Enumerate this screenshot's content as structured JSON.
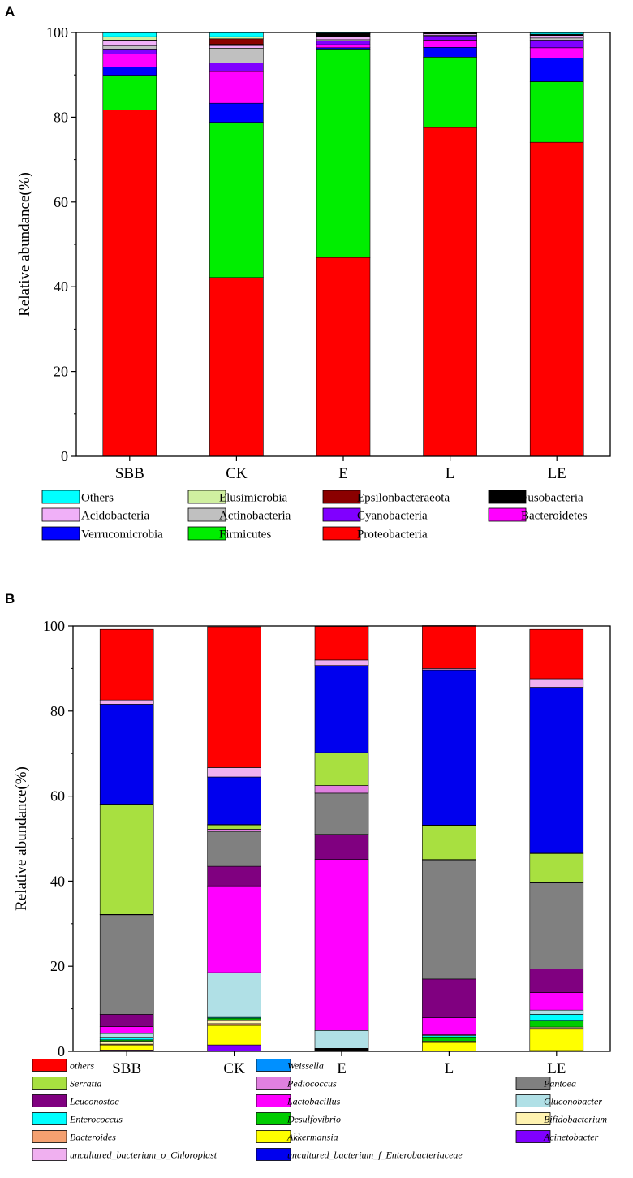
{
  "chart_data": [
    {
      "type": "bar",
      "stacked": true,
      "panel_label": "A",
      "title": "",
      "xlabel": "",
      "ylabel": "Relative abundance(%)",
      "ylim": [
        0,
        100
      ],
      "yticks": [
        0,
        20,
        40,
        60,
        80,
        100
      ],
      "categories": [
        "SBB",
        "CK",
        "E",
        "L",
        "LE"
      ],
      "legend_position": "bottom",
      "legend_italic": false,
      "legend_order": [
        "Others",
        "Elusimicrobia",
        "Epsilonbacteraeota",
        "Fusobacteria",
        "Acidobacteria",
        "Actinobacteria",
        "Cyanobacteria",
        "Bacteroidetes",
        "Verrucomicrobia",
        "Firmicutes",
        "Proteobacteria"
      ],
      "series": [
        {
          "name": "Proteobacteria",
          "color": "#ff0000",
          "values": [
            81.7,
            42.2,
            46.9,
            77.6,
            74.1
          ]
        },
        {
          "name": "Firmicutes",
          "color": "#00ee00",
          "values": [
            8.2,
            36.6,
            49.2,
            16.6,
            14.3
          ]
        },
        {
          "name": "Verrucomicrobia",
          "color": "#0000ff",
          "values": [
            2.0,
            4.5,
            0.3,
            2.3,
            5.6
          ]
        },
        {
          "name": "Bacteroidetes",
          "color": "#ff00ff",
          "values": [
            3.0,
            7.5,
            0.7,
            1.7,
            2.4
          ]
        },
        {
          "name": "Cyanobacteria",
          "color": "#8000ff",
          "values": [
            1.2,
            2.0,
            0.9,
            1.0,
            1.8
          ]
        },
        {
          "name": "Actinobacteria",
          "color": "#c0c0c0",
          "values": [
            0.7,
            3.5,
            0.3,
            0.2,
            0.5
          ]
        },
        {
          "name": "Acidobacteria",
          "color": "#f0b0f8",
          "values": [
            1.2,
            0.6,
            0.8,
            0.3,
            0.6
          ]
        },
        {
          "name": "Fusobacteria",
          "color": "#000000",
          "values": [
            0.1,
            0.3,
            0.5,
            0.1,
            0.1
          ]
        },
        {
          "name": "Epsilonbacteraeota",
          "color": "#8b0000",
          "values": [
            0.1,
            1.3,
            0.1,
            0.1,
            0.1
          ]
        },
        {
          "name": "Elusimicrobia",
          "color": "#d0f0a0",
          "values": [
            0.8,
            0.5,
            0.1,
            0.1,
            0.1
          ]
        },
        {
          "name": "Others",
          "color": "#00ffff",
          "values": [
            1.0,
            1.0,
            0.2,
            0.0,
            0.4
          ]
        }
      ]
    },
    {
      "type": "bar",
      "stacked": true,
      "panel_label": "B",
      "title": "",
      "xlabel": "",
      "ylabel": "Relative abundance(%)",
      "ylim": [
        0,
        100
      ],
      "yticks": [
        0,
        20,
        40,
        60,
        80,
        100
      ],
      "categories": [
        "SBB",
        "CK",
        "E",
        "L",
        "LE"
      ],
      "legend_position": "bottom",
      "legend_italic": true,
      "legend_order": [
        "others",
        "Weissella",
        "Pantoea",
        "Serratia",
        "Pediococcus",
        "Leuconostoc",
        "Lactobacillus",
        "Gluconobacter",
        "Enterococcus",
        "Desulfovibrio",
        "Bifidobacterium",
        "Bacteroides",
        "Akkermansia",
        "Acinetobacter",
        "uncultured_bacterium_o_Chloroplast",
        "uncultured_bacterium_f_Enterobacteriaceae"
      ],
      "series": [
        {
          "name": "Acinetobacter",
          "color": "#8000ff",
          "values": [
            0.3,
            1.5,
            0.2,
            0.1,
            0.2
          ]
        },
        {
          "name": "Akkermansia",
          "color": "#ffff00",
          "values": [
            1.2,
            4.6,
            0.1,
            2.0,
            5.0
          ]
        },
        {
          "name": "Bacteroides",
          "color": "#f4a070",
          "values": [
            0.2,
            0.4,
            0.1,
            0.1,
            0.2
          ]
        },
        {
          "name": "Bifidobacterium",
          "color": "#fff3b0",
          "values": [
            0.7,
            0.9,
            0.1,
            0.2,
            0.3
          ]
        },
        {
          "name": "Desulfovibrio",
          "color": "#00cc00",
          "values": [
            0.3,
            0.4,
            0.1,
            1.0,
            1.6
          ]
        },
        {
          "name": "Enterococcus",
          "color": "#00ffff",
          "values": [
            0.6,
            0.2,
            0.1,
            0.3,
            1.4
          ]
        },
        {
          "name": "Gluconobacter",
          "color": "#b0e0e6",
          "values": [
            0.9,
            10.5,
            4.2,
            0.2,
            1.0
          ]
        },
        {
          "name": "Lactobacillus",
          "color": "#ff00ff",
          "values": [
            1.6,
            20.4,
            40.2,
            4.0,
            4.1
          ]
        },
        {
          "name": "Leuconostoc",
          "color": "#800080",
          "values": [
            2.9,
            4.6,
            5.9,
            9.1,
            5.6
          ]
        },
        {
          "name": "Pantoea",
          "color": "#808080",
          "values": [
            23.4,
            8.2,
            9.7,
            28.0,
            20.2
          ]
        },
        {
          "name": "Pediococcus",
          "color": "#e080e0",
          "values": [
            0.1,
            0.5,
            1.8,
            0.1,
            0.1
          ]
        },
        {
          "name": "Serratia",
          "color": "#a8e040",
          "values": [
            25.8,
            1.0,
            7.6,
            8.0,
            6.8
          ]
        },
        {
          "name": "Weissella",
          "color": "#0090ff",
          "values": [
            0.1,
            0.1,
            0.1,
            0.1,
            0.1
          ]
        },
        {
          "name": "uncultured_bacterium_f_Enterobacteriaceae",
          "color": "#0000ee",
          "values": [
            23.5,
            11.2,
            20.5,
            36.5,
            39.0
          ]
        },
        {
          "name": "uncultured_bacterium_o_Chloroplast",
          "color": "#f0b0f0",
          "values": [
            1.0,
            2.2,
            1.3,
            0.3,
            2.0
          ]
        },
        {
          "name": "others",
          "color": "#ff0000",
          "values": [
            16.6,
            33.1,
            7.9,
            10.1,
            11.6
          ]
        }
      ]
    }
  ]
}
